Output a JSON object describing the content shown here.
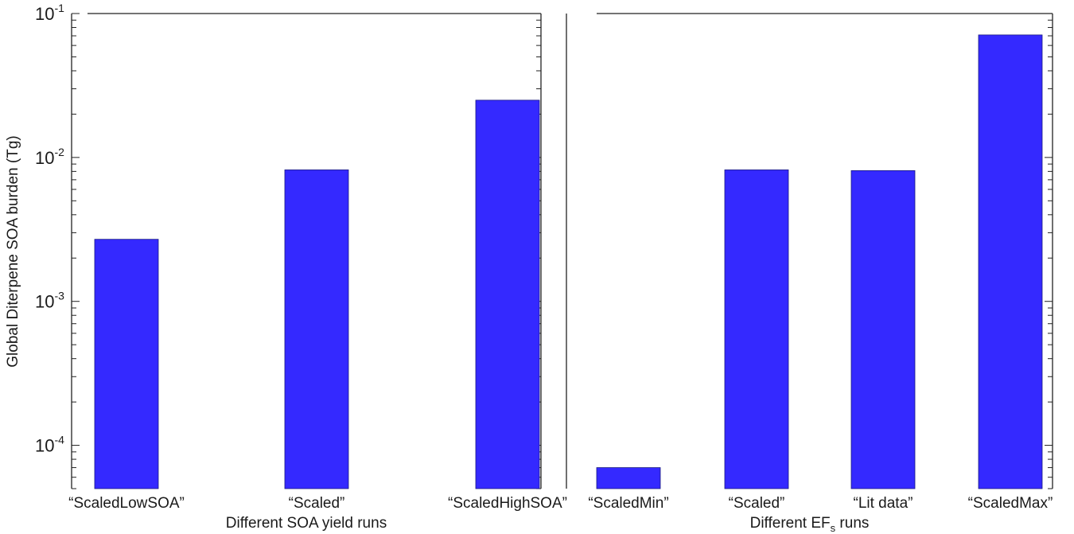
{
  "chart_data": {
    "type": "bar",
    "yscale": "log",
    "ylim": [
      5e-05,
      0.1
    ],
    "ylabel": "Global Diterpene SOA burden (Tg)",
    "bar_color": "#3429ff",
    "y_ticks": [
      {
        "value": 0.1,
        "mantissa": "10",
        "exponent": "-1"
      },
      {
        "value": 0.01,
        "mantissa": "10",
        "exponent": "-2"
      },
      {
        "value": 0.001,
        "mantissa": "10",
        "exponent": "-3"
      },
      {
        "value": 0.0001,
        "mantissa": "10",
        "exponent": "-4"
      }
    ],
    "panels": [
      {
        "xlabel": "Different SOA yield runs",
        "xlabel_sub": "",
        "xlabel_tail": "",
        "categories": [
          "“ScaledLowSOA”",
          "“Scaled”",
          "“ScaledHighSOA”"
        ],
        "values": [
          0.0027,
          0.0082,
          0.025
        ]
      },
      {
        "xlabel": "Different EF",
        "xlabel_sub": "s",
        "xlabel_tail": " runs",
        "categories": [
          "“ScaledMin”",
          "“Scaled”",
          "“Lit data”",
          "“ScaledMax”"
        ],
        "values": [
          7e-05,
          0.0082,
          0.0081,
          0.071
        ]
      }
    ]
  }
}
